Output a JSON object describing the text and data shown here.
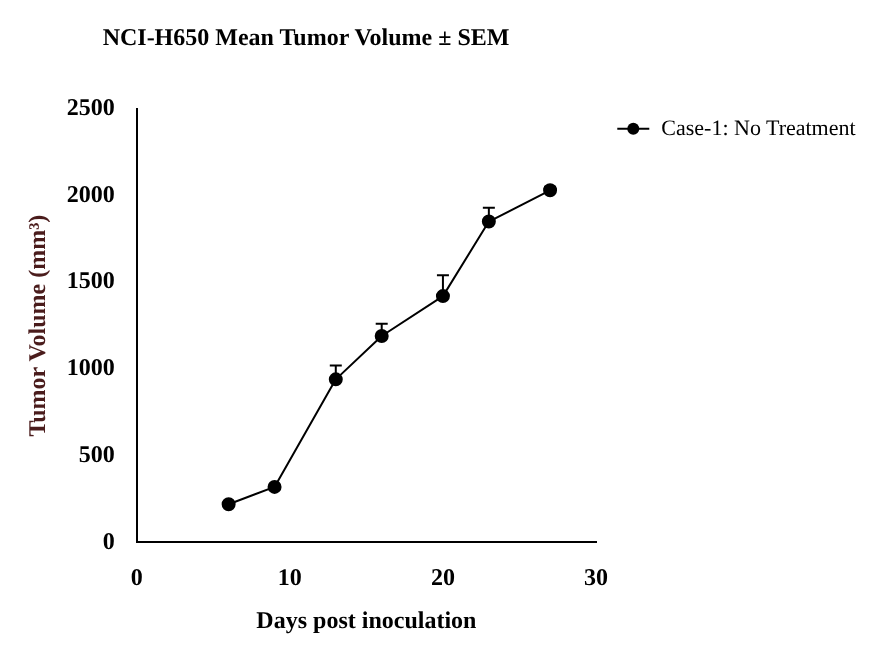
{
  "chart_data": {
    "type": "line",
    "title": "NCI-H650 Mean Tumor Volume ± SEM",
    "xlabel": "Days post inoculation",
    "ylabel": "Tumor Volume (mm³)",
    "x": [
      6,
      9,
      13,
      16,
      20,
      23,
      27
    ],
    "series": [
      {
        "name": "Case-1: No Treatment",
        "color": "#000000",
        "values": [
          220,
          320,
          940,
          1190,
          1420,
          1850,
          2030
        ],
        "errors": [
          null,
          null,
          [
            940,
            1020
          ],
          [
            1190,
            1260
          ],
          [
            1420,
            1540
          ],
          [
            1850,
            1930
          ],
          [
            2030,
            2050
          ]
        ]
      }
    ],
    "xlim": [
      0,
      30
    ],
    "xticks": [
      0,
      10,
      20,
      30
    ],
    "ylim": [
      0,
      2500
    ],
    "yticks": [
      0,
      500,
      1000,
      1500,
      2000,
      2500
    ],
    "grid": false,
    "legend": "top right",
    "marker": "circle",
    "line_style": "solid"
  }
}
